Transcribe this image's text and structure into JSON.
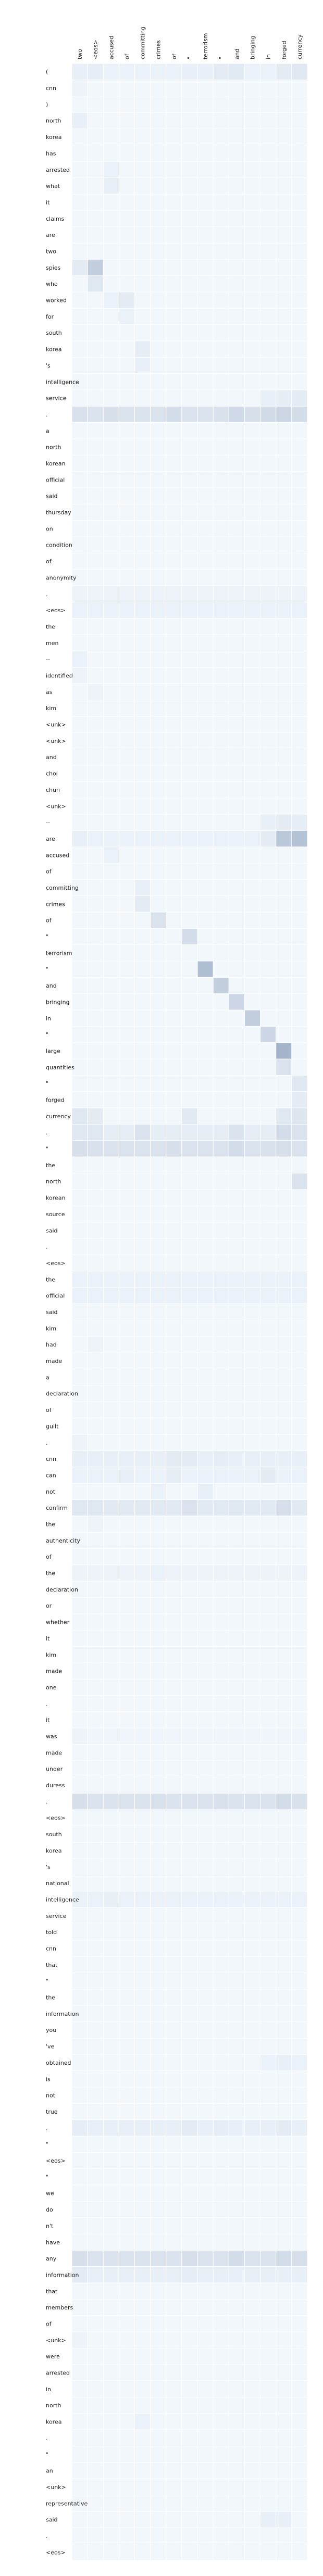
{
  "chart_data": {
    "type": "heatmap",
    "title": "",
    "xlabel": "",
    "ylabel": "",
    "colormap": {
      "low": "#f7fbff",
      "high": "#08306b"
    },
    "value_range": [
      0,
      1
    ],
    "x_labels": [
      "two",
      "<eos>",
      "accused",
      "of",
      "committing",
      "crimes",
      "of",
      "\"",
      "terrorism",
      "\"",
      "and",
      "bringing",
      "in",
      "forged",
      "currency"
    ],
    "y_labels": [
      "(",
      "cnn",
      ")",
      "north",
      "korea",
      "has",
      "arrested",
      "what",
      "it",
      "claims",
      "are",
      "two",
      "spies",
      "who",
      "worked",
      "for",
      "south",
      "korea",
      "'s",
      "intelligence",
      "service",
      ".",
      "a",
      "north",
      "korean",
      "official",
      "said",
      "thursday",
      "on",
      "condition",
      "of",
      "anonymity",
      ".",
      "<eos>",
      "the",
      "men",
      "--",
      "identified",
      "as",
      "kim",
      "<unk>",
      "<unk>",
      "and",
      "choi",
      "chun",
      "<unk>",
      "--",
      "are",
      "accused",
      "of",
      "committing",
      "crimes",
      "of",
      "\"",
      "terrorism",
      "\"",
      "and",
      "bringing",
      "in",
      "\"",
      "large",
      "quantities",
      "\"",
      "forged",
      "currency",
      ".",
      "\"",
      "the",
      "north",
      "korean",
      "source",
      "said",
      ".",
      "<eos>",
      "the",
      "official",
      "said",
      "kim",
      "had",
      "made",
      "a",
      "declaration",
      "of",
      "guilt",
      ".",
      "cnn",
      "can",
      "not",
      "confirm",
      "the",
      "authenticity",
      "of",
      "the",
      "declaration",
      "or",
      "whether",
      "it",
      "kim",
      "made",
      "one",
      ".",
      "it",
      "was",
      "made",
      "under",
      "duress",
      ".",
      "<eos>",
      "south",
      "korea",
      "'s",
      "national",
      "intelligence",
      "service",
      "told",
      "cnn",
      "that",
      "\"",
      "the",
      "information",
      "you",
      "'ve",
      "obtained",
      "is",
      "not",
      "true",
      ".",
      "\"",
      "<eos>",
      "\"",
      "we",
      "do",
      "n't",
      "have",
      "any",
      "information",
      "that",
      "members",
      "of",
      "<unk>",
      "were",
      "arrested",
      "in",
      "north",
      "korea",
      ".",
      "\"",
      "an",
      "<unk>",
      "representative",
      "said",
      ".",
      "<eos>"
    ],
    "values": {
      "default": 0.02,
      "row_defaults": {
        "0": 0.05,
        "21": 0.12,
        "32": 0.04,
        "33": 0.05,
        "47": 0.05,
        "65": 0.07,
        "66": 0.12,
        "74": 0.05,
        "75": 0.05,
        "85": 0.06,
        "86": 0.05,
        "88": 0.09,
        "92": 0.04,
        "102": 0.03,
        "106": 0.12,
        "112": 0.05,
        "126": 0.06,
        "134": 0.12,
        "135": 0.06,
        "156": 0.06
      },
      "cells": [
        [
          0,
          0,
          0.06
        ],
        [
          0,
          1,
          0.07
        ],
        [
          0,
          7,
          0.06
        ],
        [
          0,
          8,
          0.06
        ],
        [
          0,
          9,
          0.08
        ],
        [
          0,
          10,
          0.09
        ],
        [
          0,
          13,
          0.08
        ],
        [
          0,
          14,
          0.1
        ],
        [
          1,
          0,
          0.04
        ],
        [
          3,
          0,
          0.06
        ],
        [
          6,
          2,
          0.05
        ],
        [
          7,
          2,
          0.06
        ],
        [
          12,
          0,
          0.08
        ],
        [
          12,
          1,
          0.22
        ],
        [
          13,
          1,
          0.1
        ],
        [
          14,
          2,
          0.05
        ],
        [
          14,
          3,
          0.08
        ],
        [
          15,
          3,
          0.05
        ],
        [
          17,
          4,
          0.07
        ],
        [
          18,
          4,
          0.06
        ],
        [
          20,
          12,
          0.06
        ],
        [
          20,
          13,
          0.07
        ],
        [
          20,
          14,
          0.08
        ],
        [
          21,
          0,
          0.13
        ],
        [
          21,
          2,
          0.14
        ],
        [
          21,
          6,
          0.15
        ],
        [
          21,
          9,
          0.13
        ],
        [
          21,
          10,
          0.17
        ],
        [
          21,
          11,
          0.14
        ],
        [
          21,
          12,
          0.16
        ],
        [
          21,
          13,
          0.18
        ],
        [
          21,
          14,
          0.15
        ],
        [
          36,
          0,
          0.05
        ],
        [
          37,
          0,
          0.04
        ],
        [
          38,
          1,
          0.04
        ],
        [
          46,
          12,
          0.06
        ],
        [
          46,
          13,
          0.08
        ],
        [
          46,
          14,
          0.07
        ],
        [
          47,
          0,
          0.06
        ],
        [
          47,
          12,
          0.08
        ],
        [
          47,
          13,
          0.25
        ],
        [
          47,
          14,
          0.28
        ],
        [
          48,
          2,
          0.05
        ],
        [
          50,
          4,
          0.06
        ],
        [
          51,
          4,
          0.08
        ],
        [
          52,
          5,
          0.12
        ],
        [
          53,
          7,
          0.15
        ],
        [
          55,
          8,
          0.3
        ],
        [
          56,
          9,
          0.22
        ],
        [
          57,
          10,
          0.18
        ],
        [
          58,
          11,
          0.22
        ],
        [
          59,
          12,
          0.18
        ],
        [
          60,
          13,
          0.35
        ],
        [
          61,
          13,
          0.12
        ],
        [
          62,
          14,
          0.1
        ],
        [
          63,
          14,
          0.08
        ],
        [
          64,
          0,
          0.1
        ],
        [
          64,
          1,
          0.08
        ],
        [
          64,
          7,
          0.09
        ],
        [
          64,
          13,
          0.1
        ],
        [
          64,
          14,
          0.11
        ],
        [
          65,
          0,
          0.1
        ],
        [
          65,
          1,
          0.1
        ],
        [
          65,
          4,
          0.12
        ],
        [
          65,
          10,
          0.12
        ],
        [
          65,
          13,
          0.15
        ],
        [
          65,
          14,
          0.12
        ],
        [
          66,
          0,
          0.14
        ],
        [
          66,
          1,
          0.13
        ],
        [
          66,
          2,
          0.12
        ],
        [
          66,
          6,
          0.14
        ],
        [
          66,
          10,
          0.15
        ],
        [
          66,
          11,
          0.12
        ],
        [
          66,
          12,
          0.13
        ],
        [
          66,
          13,
          0.14
        ],
        [
          66,
          14,
          0.12
        ],
        [
          68,
          14,
          0.12
        ],
        [
          78,
          1,
          0.04
        ],
        [
          84,
          0,
          0.04
        ],
        [
          85,
          6,
          0.08
        ],
        [
          85,
          7,
          0.08
        ],
        [
          85,
          9,
          0.07
        ],
        [
          86,
          3,
          0.06
        ],
        [
          86,
          6,
          0.07
        ],
        [
          86,
          12,
          0.08
        ],
        [
          87,
          5,
          0.05
        ],
        [
          87,
          8,
          0.06
        ],
        [
          88,
          0,
          0.1
        ],
        [
          88,
          1,
          0.1
        ],
        [
          88,
          7,
          0.12
        ],
        [
          88,
          10,
          0.1
        ],
        [
          88,
          13,
          0.14
        ],
        [
          89,
          1,
          0.04
        ],
        [
          92,
          5,
          0.05
        ],
        [
          102,
          0,
          0.04
        ],
        [
          106,
          0,
          0.14
        ],
        [
          106,
          2,
          0.12
        ],
        [
          106,
          5,
          0.13
        ],
        [
          106,
          9,
          0.13
        ],
        [
          106,
          12,
          0.12
        ],
        [
          106,
          13,
          0.15
        ],
        [
          106,
          14,
          0.13
        ],
        [
          112,
          0,
          0.05
        ],
        [
          112,
          2,
          0.06
        ],
        [
          122,
          12,
          0.05
        ],
        [
          122,
          13,
          0.06
        ],
        [
          122,
          14,
          0.05
        ],
        [
          126,
          0,
          0.07
        ],
        [
          126,
          7,
          0.08
        ],
        [
          126,
          9,
          0.07
        ],
        [
          126,
          13,
          0.08
        ],
        [
          134,
          0,
          0.14
        ],
        [
          134,
          1,
          0.12
        ],
        [
          134,
          7,
          0.14
        ],
        [
          134,
          10,
          0.15
        ],
        [
          134,
          13,
          0.15
        ],
        [
          134,
          14,
          0.14
        ],
        [
          135,
          0,
          0.08
        ],
        [
          135,
          2,
          0.06
        ],
        [
          135,
          7,
          0.07
        ],
        [
          135,
          10,
          0.06
        ],
        [
          139,
          0,
          0.04
        ],
        [
          144,
          4,
          0.05
        ],
        [
          150,
          12,
          0.06
        ],
        [
          150,
          13,
          0.06
        ],
        [
          156,
          1,
          0.07
        ],
        [
          156,
          7,
          0.06
        ],
        [
          156,
          10,
          0.06
        ],
        [
          156,
          13,
          0.08
        ]
      ]
    },
    "grid": false,
    "legend": "none"
  }
}
